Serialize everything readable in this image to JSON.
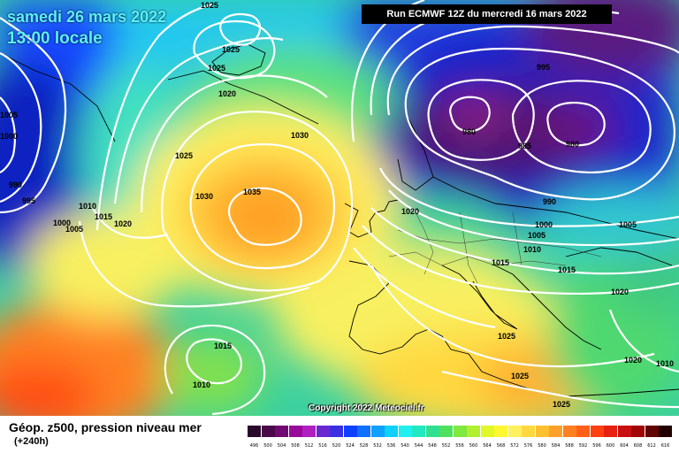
{
  "header": {
    "date_line": "samedi 26 mars 2022",
    "time_line": "13:00 locale",
    "run_info": "Run ECMWF 12Z du mercredi 16 mars 2022"
  },
  "footer": {
    "title": "Géop. z500, pression niveau mer",
    "lead_time": "(+240h)",
    "copyright": "Copyright 2022 Meteociel.fr"
  },
  "colors": {
    "low_center": "#6a0f6a",
    "deep_blue": "#1020b0",
    "mid_green": "#4fd36a",
    "high_orange": "#ffa028",
    "isobar": "#ffffff"
  },
  "map": {
    "isobar_labels": [
      {
        "text": "1025"
      },
      {
        "text": "1025"
      },
      {
        "text": "1025"
      },
      {
        "text": "1020"
      },
      {
        "text": "1030"
      },
      {
        "text": "1025"
      },
      {
        "text": "1030"
      },
      {
        "text": "1035"
      },
      {
        "text": "1010"
      },
      {
        "text": "1015"
      },
      {
        "text": "1020"
      },
      {
        "text": "1000"
      },
      {
        "text": "1005"
      },
      {
        "text": "995"
      },
      {
        "text": "990"
      },
      {
        "text": "1000"
      },
      {
        "text": "1005"
      },
      {
        "text": "995"
      },
      {
        "text": "980"
      },
      {
        "text": "985"
      },
      {
        "text": "980"
      },
      {
        "text": "990"
      },
      {
        "text": "1000"
      },
      {
        "text": "1005"
      },
      {
        "text": "1010"
      },
      {
        "text": "1005"
      },
      {
        "text": "1020"
      },
      {
        "text": "1015"
      },
      {
        "text": "1015"
      },
      {
        "text": "1020"
      },
      {
        "text": "1025"
      },
      {
        "text": "1025"
      },
      {
        "text": "1025"
      },
      {
        "text": "1020"
      },
      {
        "text": "1015"
      },
      {
        "text": "1010"
      },
      {
        "text": "1010"
      }
    ]
  },
  "scale": {
    "labels": [
      "496",
      "500",
      "504",
      "508",
      "512",
      "516",
      "520",
      "524",
      "528",
      "532",
      "536",
      "540",
      "544",
      "548",
      "552",
      "556",
      "560",
      "564",
      "568",
      "572",
      "576",
      "580",
      "584",
      "588",
      "592",
      "596",
      "600",
      "604",
      "608",
      "612",
      "616"
    ],
    "colors": [
      "#2a0a2a",
      "#4a0a4a",
      "#700a70",
      "#9a0a9a",
      "#b020c0",
      "#6a28d0",
      "#3a30e0",
      "#1040ff",
      "#1070ff",
      "#10a0ff",
      "#10d0ff",
      "#20f0f0",
      "#20e8c0",
      "#30e090",
      "#50e060",
      "#80e840",
      "#b0f030",
      "#e0f828",
      "#fff830",
      "#fff060",
      "#ffd840",
      "#ffc030",
      "#ffa028",
      "#ff8020",
      "#ff6018",
      "#ff4010",
      "#e82010",
      "#c81010",
      "#a00808",
      "#600404",
      "#200000"
    ]
  }
}
